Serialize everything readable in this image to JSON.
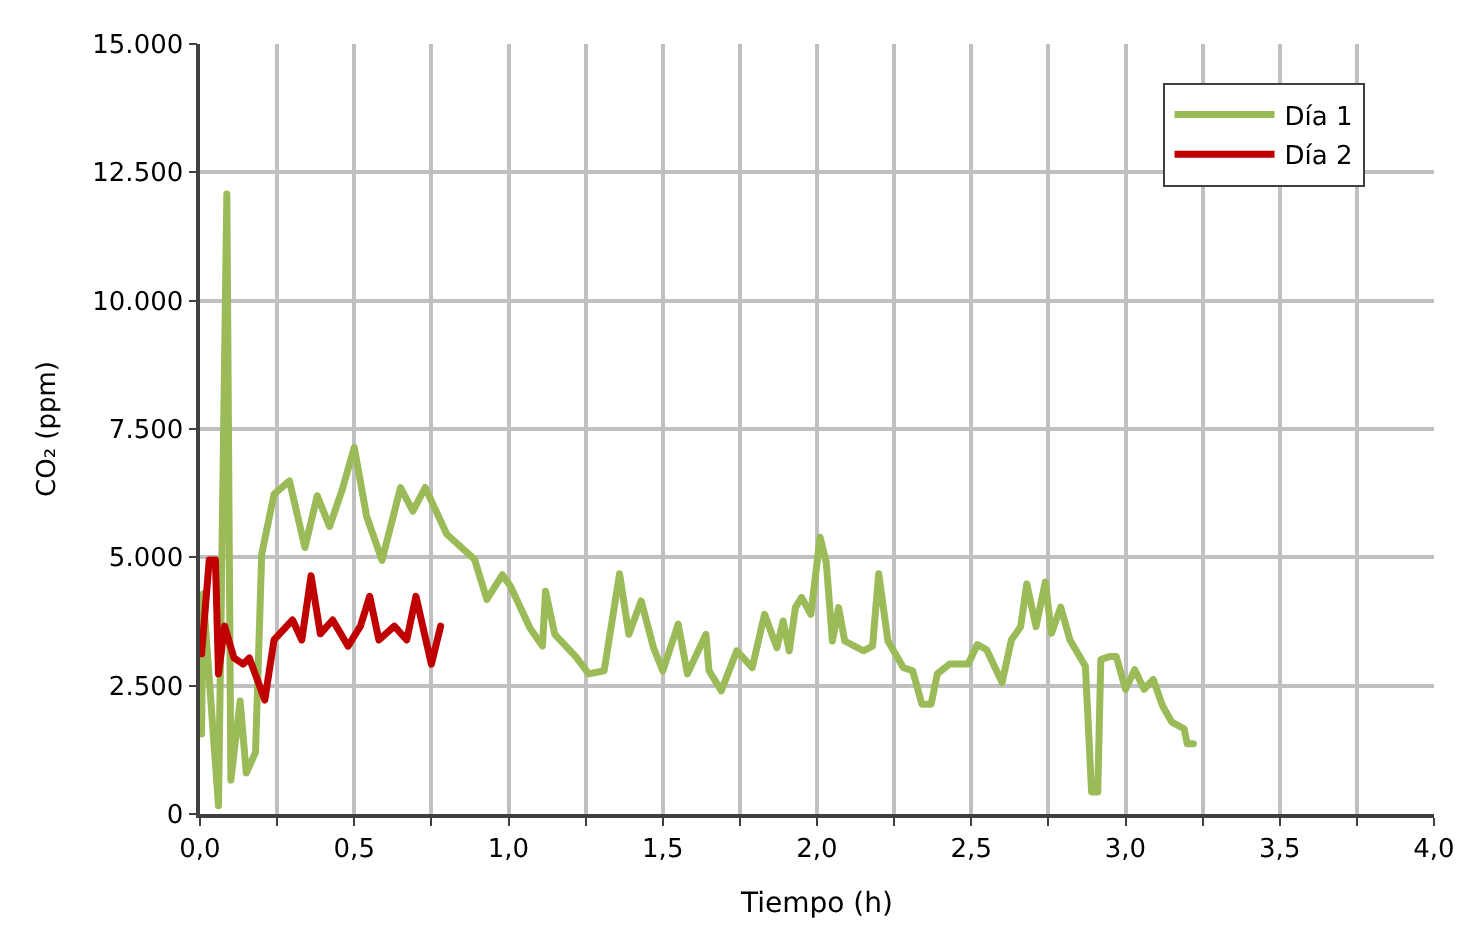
{
  "chart_data": {
    "type": "line",
    "xlabel": "Tiempo (h)",
    "ylabel": "CO₂ (ppm)",
    "xlim": [
      0,
      4
    ],
    "ylim": [
      0,
      15000
    ],
    "xticks": [
      {
        "value": 0,
        "label": "0,0"
      },
      {
        "value": 0.25,
        "label": null
      },
      {
        "value": 0.5,
        "label": "0,5"
      },
      {
        "value": 0.75,
        "label": null
      },
      {
        "value": 1,
        "label": "1,0"
      },
      {
        "value": 1.25,
        "label": null
      },
      {
        "value": 1.5,
        "label": "1,5"
      },
      {
        "value": 1.75,
        "label": null
      },
      {
        "value": 2,
        "label": "2,0"
      },
      {
        "value": 2.25,
        "label": null
      },
      {
        "value": 2.5,
        "label": "2,5"
      },
      {
        "value": 2.75,
        "label": null
      },
      {
        "value": 3,
        "label": "3,0"
      },
      {
        "value": 3.25,
        "label": null
      },
      {
        "value": 3.5,
        "label": "3,5"
      },
      {
        "value": 3.75,
        "label": null
      },
      {
        "value": 4,
        "label": "4,0"
      }
    ],
    "yticks": [
      0,
      {
        "value": 2500,
        "label": "2.500"
      },
      {
        "value": 5000,
        "label": "5.000"
      },
      {
        "value": 7500,
        "label": "7.500"
      },
      {
        "value": 10000,
        "label": "10.000"
      },
      {
        "value": 12500,
        "label": "12.500"
      },
      {
        "value": 15000,
        "label": "15.000"
      }
    ],
    "grid": true,
    "legend": "top right",
    "marker": "none",
    "line_style": "solid",
    "series": [
      {
        "name": "Día 1",
        "color": "#9bbb59",
        "x": [
          0.005,
          0.01,
          0.06,
          0.087,
          0.1,
          0.13,
          0.15,
          0.18,
          0.2,
          0.24,
          0.29,
          0.34,
          0.38,
          0.42,
          0.46,
          0.5,
          0.54,
          0.59,
          0.65,
          0.69,
          0.73,
          0.8,
          0.89,
          0.93,
          0.98,
          1.006,
          1.07,
          1.11,
          1.12,
          1.15,
          1.22,
          1.26,
          1.31,
          1.36,
          1.39,
          1.43,
          1.47,
          1.5,
          1.55,
          1.58,
          1.64,
          1.65,
          1.69,
          1.74,
          1.79,
          1.83,
          1.87,
          1.89,
          1.91,
          1.93,
          1.95,
          1.98,
          2.01,
          2.03,
          2.05,
          2.07,
          2.09,
          2.15,
          2.18,
          2.2,
          2.23,
          2.28,
          2.31,
          2.34,
          2.37,
          2.39,
          2.43,
          2.49,
          2.52,
          2.55,
          2.6,
          2.63,
          2.66,
          2.68,
          2.71,
          2.74,
          2.76,
          2.79,
          2.82,
          2.87,
          2.89,
          2.91,
          2.92,
          2.95,
          2.97,
          3.0,
          3.03,
          3.06,
          3.09,
          3.12,
          3.15,
          3.19,
          3.2,
          3.22
        ],
        "values": [
          1560,
          4290,
          160,
          12080,
          660,
          2200,
          800,
          1200,
          5060,
          6230,
          6490,
          5190,
          6200,
          5600,
          6300,
          7140,
          5800,
          4940,
          6360,
          5900,
          6360,
          5450,
          4960,
          4180,
          4660,
          4440,
          3620,
          3270,
          4340,
          3500,
          3050,
          2730,
          2790,
          4680,
          3500,
          4150,
          3240,
          2790,
          3700,
          2730,
          3500,
          2790,
          2400,
          3180,
          2850,
          3890,
          3240,
          3760,
          3180,
          4020,
          4220,
          3890,
          5390,
          4900,
          3370,
          4020,
          3370,
          3180,
          3270,
          4680,
          3370,
          2850,
          2790,
          2140,
          2140,
          2730,
          2920,
          2920,
          3300,
          3200,
          2560,
          3390,
          3650,
          4480,
          3650,
          4520,
          3520,
          4030,
          3390,
          2880,
          430,
          430,
          3010,
          3070,
          3070,
          2430,
          2810,
          2430,
          2620,
          2110,
          1790,
          1660,
          1370,
          1370
        ]
      },
      {
        "name": "Día 2",
        "color": "#c00000",
        "x": [
          0.005,
          0.03,
          0.05,
          0.06,
          0.08,
          0.11,
          0.14,
          0.16,
          0.21,
          0.24,
          0.3,
          0.33,
          0.36,
          0.39,
          0.43,
          0.48,
          0.52,
          0.55,
          0.58,
          0.63,
          0.67,
          0.7,
          0.75,
          0.78
        ],
        "values": [
          3120,
          4950,
          4950,
          2730,
          3660,
          3040,
          2920,
          3040,
          2220,
          3390,
          3780,
          3390,
          4640,
          3510,
          3780,
          3270,
          3660,
          4240,
          3390,
          3660,
          3390,
          4240,
          2920,
          3660
        ]
      }
    ]
  }
}
